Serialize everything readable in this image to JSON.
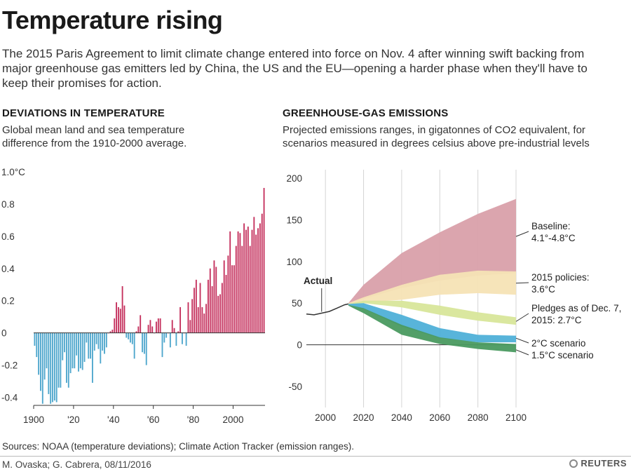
{
  "header": {
    "title": "Temperature rising",
    "intro": "The 2015 Paris Agreement to limit climate change entered into force on Nov. 4 after winning swift backing from major greenhouse gas emitters led by China, the US and the EU—opening a harder phase when they'll have to keep their promises for action."
  },
  "footer": {
    "sources": "Sources: NOAA (temperature deviations); Climate Action Tracker (emission ranges).",
    "credit": "M. Ovaska; G. Cabrera,  08/11/2016",
    "logo": "REUTERS"
  },
  "colors": {
    "positive": "#c42f5c",
    "negative": "#4da6cc",
    "baseline": "#d9a0aa",
    "policies": "#f5e3b5",
    "pledges": "#d8e69a",
    "two_c": "#4fb0d8",
    "one_five_c": "#4a9a60"
  },
  "chart_data": [
    {
      "type": "bar",
      "heading": "DEVIATIONS IN TEMPERATURE",
      "subtitle": "Global mean land and sea temperature difference from the 1910-2000 average.",
      "ylim": [
        -0.45,
        1.0
      ],
      "xlim": [
        1900,
        2016
      ],
      "ytick_values": [
        -0.4,
        -0.2,
        0,
        0.2,
        0.4,
        0.6,
        0.8,
        1.0
      ],
      "ytick_labels": [
        "-0.4",
        "-0.2",
        "0",
        "0.2",
        "0.4",
        "0.6",
        "0.8",
        "1.0°C"
      ],
      "xtick_values": [
        1900,
        1920,
        1940,
        1960,
        1980,
        2000
      ],
      "xtick_labels": [
        "1900",
        "'20",
        "'40",
        "'60",
        "'80",
        "2000"
      ],
      "years_start": 1900,
      "values": [
        -0.08,
        -0.15,
        -0.26,
        -0.36,
        -0.44,
        -0.29,
        -0.22,
        -0.38,
        -0.44,
        -0.43,
        -0.42,
        -0.43,
        -0.34,
        -0.34,
        -0.17,
        -0.12,
        -0.31,
        -0.34,
        -0.25,
        -0.22,
        -0.22,
        -0.14,
        -0.24,
        -0.22,
        -0.23,
        -0.18,
        -0.06,
        -0.16,
        -0.16,
        -0.31,
        -0.11,
        -0.07,
        -0.1,
        -0.19,
        -0.11,
        -0.13,
        -0.09,
        0.0,
        0.01,
        0.02,
        0.09,
        0.19,
        0.16,
        0.15,
        0.29,
        0.17,
        -0.03,
        -0.04,
        -0.06,
        -0.07,
        -0.16,
        0.01,
        0.04,
        0.11,
        -0.12,
        -0.13,
        -0.2,
        0.05,
        0.08,
        0.04,
        0.0,
        0.07,
        0.09,
        0.09,
        -0.15,
        -0.06,
        -0.03,
        0.0,
        -0.09,
        0.08,
        0.03,
        -0.08,
        0.01,
        0.16,
        -0.07,
        0.0,
        -0.08,
        0.19,
        0.08,
        0.21,
        0.28,
        0.33,
        0.16,
        0.31,
        0.16,
        0.12,
        0.18,
        0.33,
        0.4,
        0.29,
        0.45,
        0.41,
        0.23,
        0.24,
        0.31,
        0.45,
        0.36,
        0.48,
        0.63,
        0.42,
        0.42,
        0.54,
        0.63,
        0.62,
        0.54,
        0.68,
        0.64,
        0.66,
        0.54,
        0.64,
        0.72,
        0.61,
        0.65,
        0.68,
        0.74,
        0.9
      ]
    },
    {
      "type": "area",
      "heading": "GREENHOUSE-GAS EMISSIONS",
      "subtitle": "Projected emissions ranges, in gigatonnes of CO2 equivalent, for scenarios measured in degrees celsius above pre-industrial levels",
      "ylim": [
        -60,
        210
      ],
      "xlim": [
        1990,
        2100
      ],
      "yticks": [
        -50,
        0,
        50,
        100,
        150,
        200
      ],
      "xticks": [
        2000,
        2020,
        2040,
        2060,
        2080,
        2100
      ],
      "actual_label": "Actual",
      "actual": {
        "x": [
          1990,
          1994,
          1998,
          2002,
          2006,
          2010,
          2012
        ],
        "y": [
          37,
          36,
          38,
          40,
          44,
          48,
          49
        ]
      },
      "series": [
        {
          "name": "Baseline: 4.1°-4.8°C",
          "key": "baseline",
          "x": [
            2012,
            2020,
            2040,
            2060,
            2080,
            2100
          ],
          "upper": [
            50,
            72,
            110,
            135,
            157,
            175
          ],
          "lower": [
            48,
            55,
            68,
            77,
            83,
            86
          ]
        },
        {
          "name": "2015 policies: 3.6°C",
          "key": "policies",
          "x": [
            2012,
            2020,
            2040,
            2060,
            2080,
            2100
          ],
          "upper": [
            50,
            57,
            72,
            84,
            89,
            88
          ],
          "lower": [
            48,
            51,
            54,
            60,
            62,
            60
          ]
        },
        {
          "name": "Pledges as of Dec. 7, 2015: 2.7°C",
          "key": "pledges",
          "x": [
            2012,
            2020,
            2040,
            2060,
            2080,
            2100
          ],
          "upper": [
            49,
            53,
            53,
            47,
            39,
            33
          ],
          "lower": [
            48,
            50,
            45,
            36,
            29,
            24
          ]
        },
        {
          "name": "2°C scenario",
          "key": "two_c",
          "x": [
            2012,
            2020,
            2040,
            2060,
            2080,
            2100
          ],
          "upper": [
            49,
            50,
            36,
            20,
            12,
            11
          ],
          "lower": [
            48,
            43,
            22,
            8,
            3,
            3
          ]
        },
        {
          "name": "1.5°C scenario",
          "key": "one_five_c",
          "x": [
            2012,
            2020,
            2040,
            2060,
            2080,
            2100
          ],
          "upper": [
            48,
            44,
            24,
            9,
            3,
            1
          ],
          "lower": [
            47,
            38,
            12,
            1,
            -5,
            -9
          ]
        }
      ]
    }
  ]
}
